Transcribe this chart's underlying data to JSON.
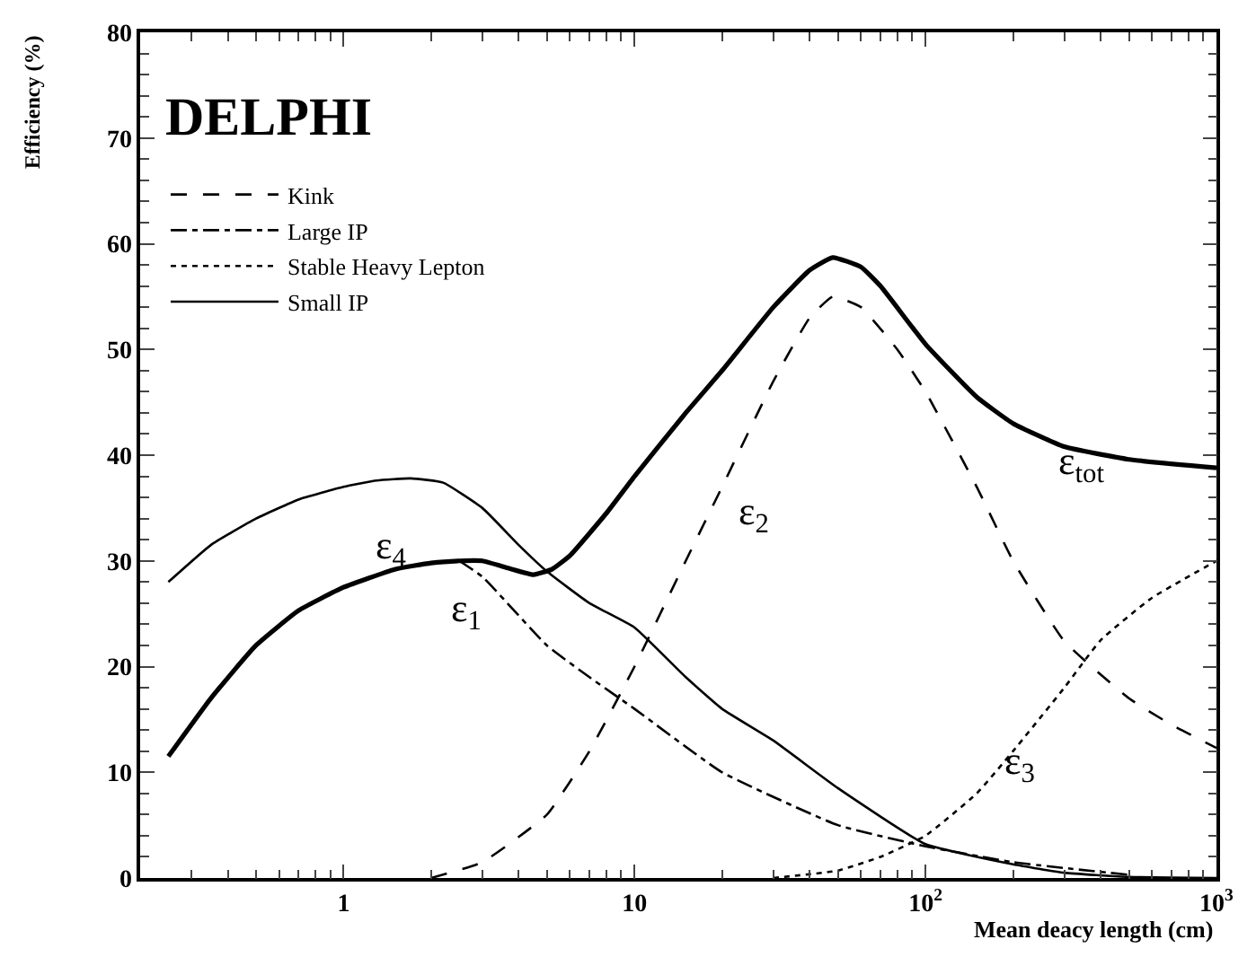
{
  "chart_data": {
    "type": "line",
    "xlabel": "Mean deacy length (cm)",
    "ylabel": "Efficiency (%)",
    "log": "x",
    "legend": "top left",
    "marker": "none",
    "xlim": [
      0.2,
      1000
    ],
    "xticks": [
      1,
      10,
      {
        "value": 100,
        "label": "10$^{2}$"
      },
      {
        "value": 1000,
        "label": "10$^{3}$"
      }
    ],
    "ylim": [
      0,
      80
    ],
    "yticks": [
      0,
      10,
      20,
      30,
      40,
      50,
      60,
      70,
      80
    ],
    "series": [
      {
        "name": "Kink",
        "color": "#000000",
        "line_style": "dashed",
        "x": [
          2,
          3,
          5,
          7,
          10,
          15,
          20,
          30,
          40,
          48,
          60,
          80,
          100,
          150,
          200,
          300,
          500,
          700,
          1000
        ],
        "values": [
          0,
          1.5,
          6,
          12,
          20,
          30,
          37,
          47,
          53,
          55,
          54,
          50,
          46,
          37,
          30,
          22.4,
          17,
          14.5,
          12.3
        ]
      },
      {
        "name": "Large IP",
        "color": "#000000",
        "line_style": "dashdot",
        "x": [
          2.5,
          3,
          5,
          7,
          10,
          20,
          50,
          100,
          200,
          500
        ],
        "values": [
          30,
          28.5,
          22,
          19,
          16,
          10,
          5,
          3,
          1.5,
          0.3
        ]
      },
      {
        "name": "Stable Heavy Lepton",
        "color": "#000000",
        "line_style": "dotted",
        "x": [
          30,
          50,
          70,
          100,
          150,
          200,
          300,
          400,
          600,
          1000
        ],
        "values": [
          0,
          0.7,
          2,
          4,
          8,
          12,
          18,
          22.5,
          26.5,
          30
        ]
      },
      {
        "name": "Small IP",
        "color": "#000000",
        "line_style": "solid",
        "x": [
          0.25,
          0.35,
          0.5,
          0.7,
          1,
          1.3,
          1.7,
          2.2,
          3,
          4,
          5,
          7,
          10,
          15,
          20,
          30,
          50,
          100,
          200,
          300,
          500,
          1000
        ],
        "values": [
          28,
          31.5,
          34,
          35.8,
          37,
          37.6,
          37.8,
          37.4,
          35,
          31.5,
          29,
          26,
          23.7,
          19,
          16,
          13,
          8.5,
          3.2,
          1.3,
          0.5,
          0.1,
          0
        ]
      },
      {
        "color": "#000000",
        "line_style": "solid",
        "x": [
          0.25,
          0.35,
          0.5,
          0.7,
          1,
          1.5,
          2,
          2.5,
          3,
          3.7,
          4.5,
          5.2,
          6,
          8,
          10,
          15,
          20,
          30,
          40,
          48,
          60,
          70,
          100,
          150,
          200,
          300,
          500,
          1000
        ],
        "values": [
          11.5,
          17,
          22,
          25.3,
          27.5,
          29.2,
          29.8,
          30,
          30,
          29.3,
          28.7,
          29.2,
          30.5,
          34.5,
          38,
          44,
          48,
          54,
          57.5,
          58.7,
          57.8,
          56,
          50.5,
          45.5,
          43,
          40.8,
          39.6,
          38.8
        ]
      }
    ],
    "annotations": [
      "DELPHI",
      "ε$_{4}$",
      "ε$_{1}$",
      "ε$_{2}$",
      "ε$_{3}$",
      "ε$_{tot}$"
    ]
  }
}
